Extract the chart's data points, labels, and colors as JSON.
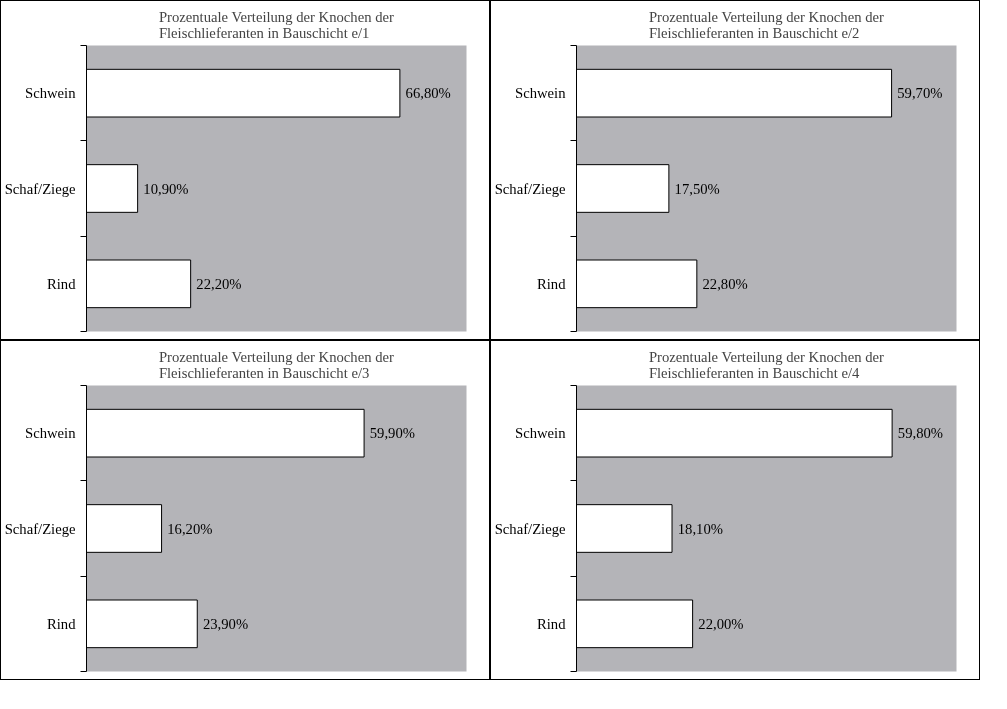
{
  "chart_data": [
    {
      "type": "bar",
      "orientation": "horizontal",
      "title": "Prozentuale Verteilung der Knochen der\nFleischlieferanten in Bauschicht e/1",
      "categories": [
        "Schwein",
        "Schaf/Ziege",
        "Rind"
      ],
      "values": [
        66.8,
        10.9,
        22.2
      ],
      "value_labels": [
        "66,80%",
        "10,90%",
        "22,20%"
      ],
      "color": "#ffffff",
      "xlim": [
        0,
        81
      ],
      "tick_labels": "y",
      "grid": false
    },
    {
      "type": "bar",
      "orientation": "horizontal",
      "title": "Prozentuale Verteilung der Knochen der\nFleischlieferanten in Bauschicht e/2",
      "categories": [
        "Schwein",
        "Schaf/Ziege",
        "Rind"
      ],
      "values": [
        59.7,
        17.5,
        22.8
      ],
      "value_labels": [
        "59,70%",
        "17,50%",
        "22,80%"
      ],
      "color": "#ffffff",
      "xlim": [
        0,
        72
      ],
      "tick_labels": "y",
      "grid": false
    },
    {
      "type": "bar",
      "orientation": "horizontal",
      "title": "Prozentuale Verteilung der Knochen der\nFleischlieferanten in Bauschicht e/3",
      "categories": [
        "Schwein",
        "Schaf/Ziege",
        "Rind"
      ],
      "values": [
        59.9,
        16.2,
        23.9
      ],
      "value_labels": [
        "59,90%",
        "16,20%",
        "23,90%"
      ],
      "color": "#ffffff",
      "xlim": [
        0,
        82
      ],
      "tick_labels": "y",
      "grid": false
    },
    {
      "type": "bar",
      "orientation": "horizontal",
      "title": "Prozentuale Verteilung der Knochen der\nFleischlieferanten in Bauschicht e/4",
      "categories": [
        "Schwein",
        "Schaf/Ziege",
        "Rind"
      ],
      "values": [
        59.8,
        18.1,
        22.0
      ],
      "value_labels": [
        "59,80%",
        "18,10%",
        "22,00%"
      ],
      "color": "#ffffff",
      "xlim": [
        0,
        72
      ],
      "tick_labels": "y",
      "grid": false
    }
  ]
}
